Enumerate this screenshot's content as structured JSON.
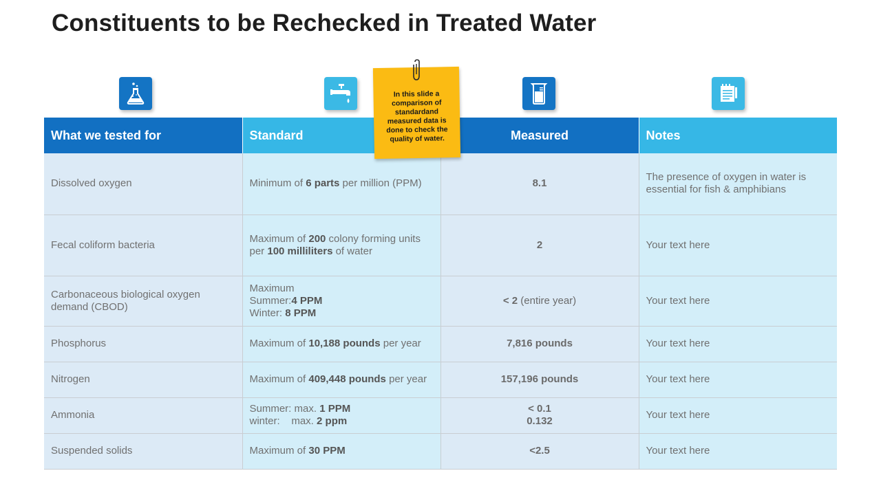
{
  "title": "Constituents to be Rechecked in Treated Water",
  "icons": [
    "flask-icon",
    "faucet-icon",
    "measuring-cylinder-icon",
    "notepad-icon"
  ],
  "colors": {
    "dark_blue": "#1270c2",
    "light_blue": "#36b7e6",
    "note_yellow": "#fbbb13"
  },
  "sticky_note": "In this slide a comparison of standardand measured data is done to check the quality of water.",
  "headers": [
    "What we tested for",
    "Standard",
    "Measured",
    "Notes"
  ],
  "rows": [
    {
      "tested": "Dissolved oxygen",
      "standard": {
        "prefix": "Minimum of ",
        "bold1": "6 parts",
        "mid": " per million (PPM)"
      },
      "measured": "8.1",
      "notes": "The presence of oxygen in water is essential for fish & amphibians"
    },
    {
      "tested": "Fecal coliform bacteria",
      "standard": {
        "prefix": "Maximum of ",
        "bold1": "200",
        "mid": " colony forming units per ",
        "bold2": "100 milliliters",
        "suffix": " of water"
      },
      "measured": "2",
      "notes": "Your text here"
    },
    {
      "tested": "Carbonaceous biological oxygen demand (CBOD)",
      "standard": {
        "line1": "Maximum",
        "line2_label": "Summer:",
        "line2_value": "4 PPM",
        "line3_label": "Winter: ",
        "line3_value": "8 PPM"
      },
      "measured": {
        "bold": "< 2",
        "rest": " (entire year)"
      },
      "notes": "Your text here"
    },
    {
      "tested": "Phosphorus",
      "standard": {
        "prefix": "Maximum of ",
        "bold1": "10,188 pounds",
        "mid": " per year"
      },
      "measured": "7,816 pounds",
      "notes": "Your text here"
    },
    {
      "tested": "Nitrogen",
      "standard": {
        "prefix": "Maximum of ",
        "bold1": "409,448 pounds",
        "mid": " per year"
      },
      "measured": "157,196 pounds",
      "notes": "Your text here"
    },
    {
      "tested": "Ammonia",
      "standard": {
        "line1_label": "Summer: max. ",
        "line1_value": "1 PPM",
        "line2_label": "winter:    max. ",
        "line2_value": "2 ppm"
      },
      "measured": {
        "line1": "< 0.1",
        "line2": "0.132"
      },
      "notes": "Your text here"
    },
    {
      "tested": "Suspended solids",
      "standard": {
        "prefix": "Maximum of ",
        "bold1": "30 PPM"
      },
      "measured": "<2.5",
      "notes": "Your text here"
    }
  ]
}
